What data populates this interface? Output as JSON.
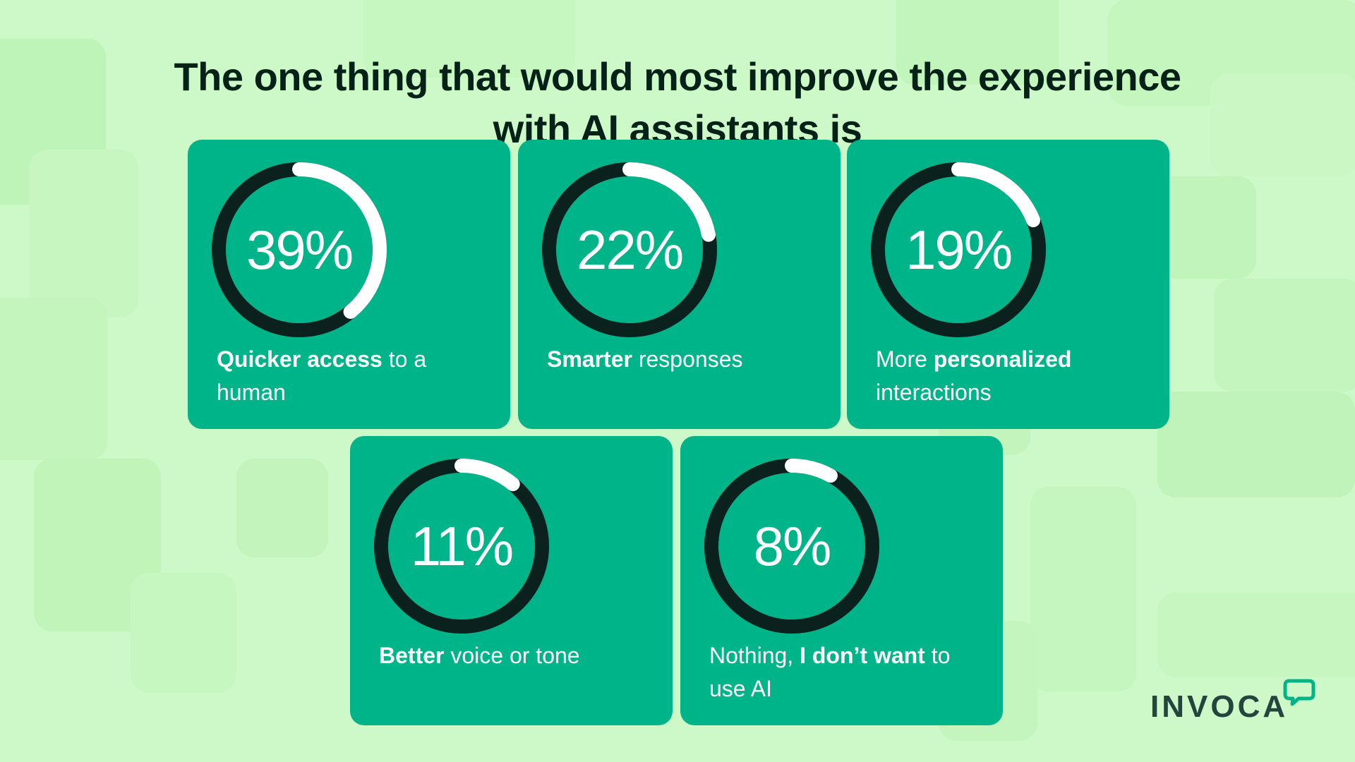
{
  "title": {
    "line1": "The one thing that would most improve the experience",
    "line2": "with AI assistants is"
  },
  "brand": {
    "name": "INVOCA",
    "logo_icon": "speech-bubble-icon"
  },
  "colors": {
    "background": "#cdf8c8",
    "card": "#00b489",
    "ring_track": "#0b211d",
    "ring_fill": "#ffffff",
    "title_text": "#062117",
    "logo_text": "#22463d",
    "logo_accent": "#00b489"
  },
  "cards": [
    {
      "pct": "39%",
      "label": [
        {
          "text": "Quicker access",
          "bold": true
        },
        {
          "text": " to a human",
          "bold": false
        }
      ]
    },
    {
      "pct": "22%",
      "label": [
        {
          "text": "Smarter",
          "bold": true
        },
        {
          "text": " responses",
          "bold": false
        }
      ]
    },
    {
      "pct": "19%",
      "label": [
        {
          "text": "More ",
          "bold": false
        },
        {
          "text": "personalized",
          "bold": true
        },
        {
          "text": " interactions",
          "bold": false
        }
      ]
    },
    {
      "pct": "11%",
      "label": [
        {
          "text": "Better",
          "bold": true
        },
        {
          "text": " voice or tone",
          "bold": false
        }
      ]
    },
    {
      "pct": "8%",
      "label": [
        {
          "text": "Nothing, ",
          "bold": false
        },
        {
          "text": "I don’t want",
          "bold": true
        },
        {
          "text": " to use AI",
          "bold": false
        }
      ]
    }
  ],
  "chart_data": {
    "type": "pie",
    "title": "The one thing that would most improve the experience with AI assistants is",
    "categories": [
      "Quicker access to a human",
      "Smarter responses",
      "More personalized interactions",
      "Better voice or tone",
      "Nothing, I don’t want to use AI"
    ],
    "values": [
      39,
      22,
      19,
      11,
      8
    ],
    "unit": "%"
  }
}
